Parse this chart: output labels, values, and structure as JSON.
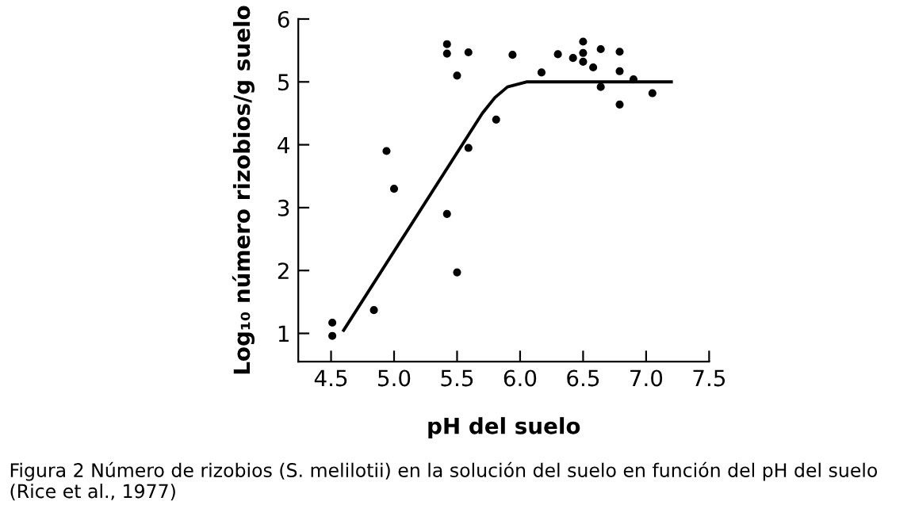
{
  "chart_data": {
    "type": "scatter",
    "xlabel": "pH del suelo",
    "ylabel": "Log₁₀ número rizobios/g suelo",
    "annotations": [
      "Figura 2 Número de rizobios (S. melilotii) en la solución del suelo en función del pH del suelo (Rice et al., 1977)"
    ],
    "series": [
      {
        "marker": "circle",
        "color": "#000000",
        "x": [
          4.51,
          4.51,
          4.84,
          4.94,
          5.0,
          5.42,
          5.42,
          5.42,
          5.5,
          5.5,
          5.59,
          5.59,
          5.81,
          5.94,
          6.17,
          6.3,
          6.42,
          6.5,
          6.5,
          6.5,
          6.58,
          6.64,
          6.64,
          6.79,
          6.79,
          6.79,
          6.9,
          7.05
        ],
        "values": [
          1.17,
          0.96,
          1.37,
          3.9,
          3.3,
          5.6,
          5.45,
          2.9,
          5.1,
          1.97,
          5.47,
          3.95,
          4.4,
          5.43,
          5.15,
          5.44,
          5.38,
          5.64,
          5.46,
          5.32,
          5.23,
          5.52,
          4.92,
          5.48,
          5.17,
          4.64,
          5.04,
          4.82
        ]
      },
      {
        "type": "line",
        "color": "#000000",
        "x": [
          4.6,
          5.7,
          5.8,
          5.9,
          6.05,
          7.2
        ],
        "values": [
          1.05,
          4.5,
          4.75,
          4.92,
          5.0,
          5.0
        ]
      }
    ],
    "xlim": [
      4.24,
      7.5
    ],
    "ylim": [
      0.55,
      6
    ],
    "xticks": [
      4.5,
      {
        "value": 5,
        "label": "5.0"
      },
      5.5,
      {
        "value": 6,
        "label": "6.0"
      },
      6.5,
      {
        "value": 7,
        "label": "7.0"
      },
      7.5
    ],
    "yticks": [
      1,
      2,
      3,
      4,
      5,
      6
    ],
    "grid": false,
    "legend": false
  }
}
